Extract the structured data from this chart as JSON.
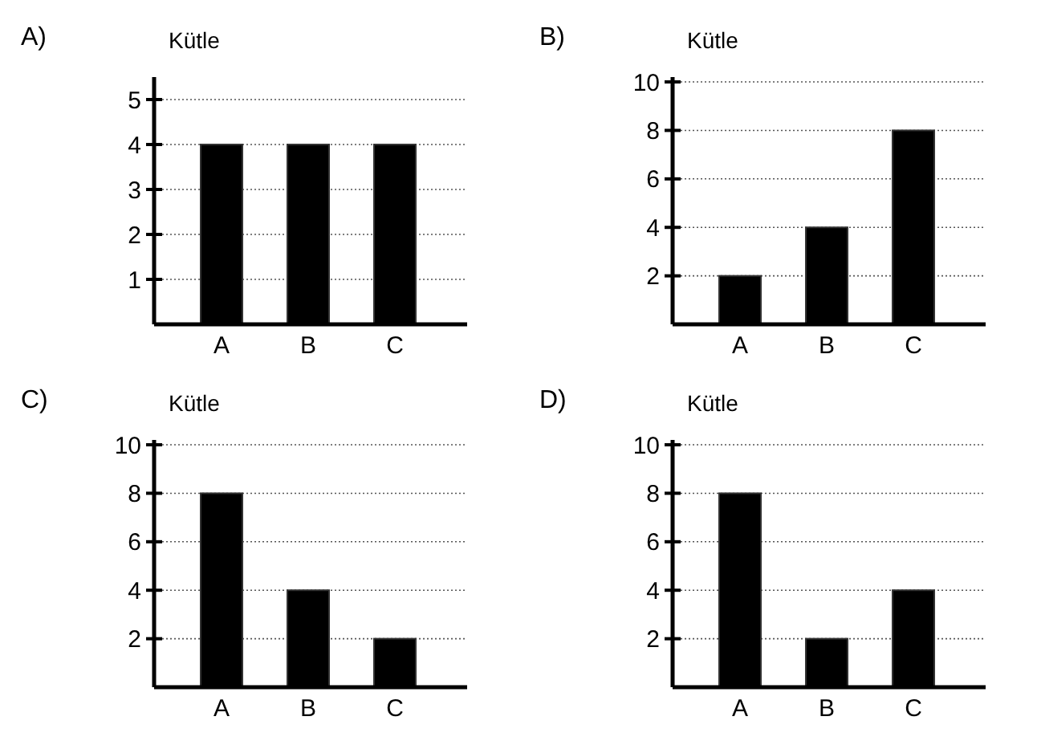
{
  "chart_data": [
    {
      "type": "bar",
      "title": "A)",
      "ylabel": "Kütle",
      "categories": [
        "A",
        "B",
        "C"
      ],
      "values": [
        4,
        4,
        4
      ],
      "color": "#000000",
      "ylim": [
        0,
        5.5
      ],
      "yticks": [
        1,
        2,
        3,
        4,
        5
      ],
      "grid": "y"
    },
    {
      "type": "bar",
      "title": "B)",
      "ylabel": "Kütle",
      "categories": [
        "A",
        "B",
        "C"
      ],
      "values": [
        2,
        4,
        8
      ],
      "color": "#000000",
      "ylim": [
        0,
        10.2
      ],
      "yticks": [
        2,
        4,
        6,
        8,
        10
      ],
      "grid": "y"
    },
    {
      "type": "bar",
      "title": "C)",
      "ylabel": "Kütle",
      "categories": [
        "A",
        "B",
        "C"
      ],
      "values": [
        8,
        4,
        2
      ],
      "color": "#000000",
      "ylim": [
        0,
        10.2
      ],
      "yticks": [
        2,
        4,
        6,
        8,
        10
      ],
      "grid": "y"
    },
    {
      "type": "bar",
      "title": "D)",
      "ylabel": "Kütle",
      "categories": [
        "A",
        "B",
        "C"
      ],
      "values": [
        8,
        2,
        4
      ],
      "color": "#000000",
      "ylim": [
        0,
        10.2
      ],
      "yticks": [
        2,
        4,
        6,
        8,
        10
      ],
      "grid": "y"
    }
  ]
}
